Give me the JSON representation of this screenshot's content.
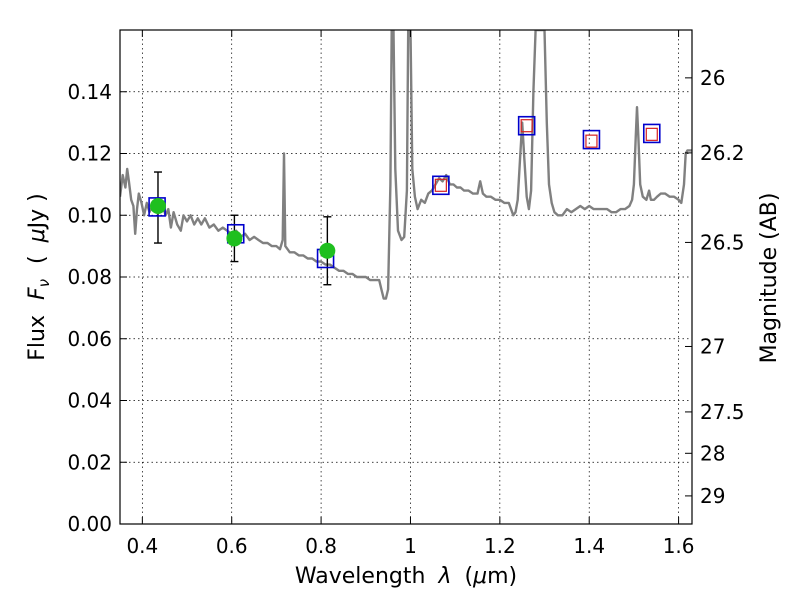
{
  "chart_data": {
    "type": "line",
    "xlabel_parts": [
      "Wavelength",
      "λ",
      "(",
      "μ",
      "m)"
    ],
    "ylabel_parts": [
      "Flux",
      "F",
      "ν",
      "(",
      "μ",
      "Jy )"
    ],
    "y2label": "Magnitude (AB)",
    "xlim": [
      0.35,
      1.63
    ],
    "ylim": [
      0.0,
      0.16
    ],
    "xticks": [
      {
        "value": 0.4,
        "label": "0.4"
      },
      {
        "value": 0.6,
        "label": "0.6"
      },
      {
        "value": 0.8,
        "label": "0.8"
      },
      {
        "value": 1.0,
        "label": "1"
      },
      {
        "value": 1.2,
        "label": "1.2"
      },
      {
        "value": 1.4,
        "label": "1.4"
      },
      {
        "value": 1.6,
        "label": "1.6"
      }
    ],
    "yticks": [
      {
        "value": 0.0,
        "label": "0.00"
      },
      {
        "value": 0.02,
        "label": "0.02"
      },
      {
        "value": 0.04,
        "label": "0.04"
      },
      {
        "value": 0.06,
        "label": "0.06"
      },
      {
        "value": 0.08,
        "label": "0.08"
      },
      {
        "value": 0.1,
        "label": "0.10"
      },
      {
        "value": 0.12,
        "label": "0.12"
      },
      {
        "value": 0.14,
        "label": "0.14"
      }
    ],
    "y2ticks": [
      {
        "label": "26",
        "flux": 0.1445
      },
      {
        "label": "26.2",
        "flux": 0.1202
      },
      {
        "label": "26.5",
        "flux": 0.0912
      },
      {
        "label": "27",
        "flux": 0.0575
      },
      {
        "label": "27.5",
        "flux": 0.0363
      },
      {
        "label": "28",
        "flux": 0.0229
      },
      {
        "label": "29",
        "flux": 0.0091
      }
    ],
    "grid": true,
    "series": [
      {
        "name": "model spectrum",
        "color": "#808080",
        "points": [
          [
            0.35,
            0.106
          ],
          [
            0.356,
            0.113
          ],
          [
            0.362,
            0.109
          ],
          [
            0.366,
            0.115
          ],
          [
            0.37,
            0.111
          ],
          [
            0.375,
            0.105
          ],
          [
            0.38,
            0.103
          ],
          [
            0.384,
            0.094
          ],
          [
            0.388,
            0.102
          ],
          [
            0.392,
            0.107
          ],
          [
            0.398,
            0.104
          ],
          [
            0.404,
            0.1
          ],
          [
            0.41,
            0.104
          ],
          [
            0.416,
            0.101
          ],
          [
            0.422,
            0.103
          ],
          [
            0.43,
            0.102
          ],
          [
            0.438,
            0.105
          ],
          [
            0.446,
            0.103
          ],
          [
            0.452,
            0.1
          ],
          [
            0.458,
            0.102
          ],
          [
            0.464,
            0.096
          ],
          [
            0.47,
            0.101
          ],
          [
            0.478,
            0.097
          ],
          [
            0.486,
            0.095
          ],
          [
            0.492,
            0.1
          ],
          [
            0.5,
            0.098
          ],
          [
            0.508,
            0.1
          ],
          [
            0.516,
            0.097
          ],
          [
            0.524,
            0.099
          ],
          [
            0.532,
            0.097
          ],
          [
            0.54,
            0.099
          ],
          [
            0.55,
            0.096
          ],
          [
            0.56,
            0.097
          ],
          [
            0.57,
            0.095
          ],
          [
            0.58,
            0.096
          ],
          [
            0.59,
            0.095
          ],
          [
            0.6,
            0.094
          ],
          [
            0.61,
            0.095
          ],
          [
            0.62,
            0.093
          ],
          [
            0.63,
            0.094
          ],
          [
            0.64,
            0.092
          ],
          [
            0.65,
            0.093
          ],
          [
            0.66,
            0.092
          ],
          [
            0.67,
            0.091
          ],
          [
            0.68,
            0.091
          ],
          [
            0.69,
            0.09
          ],
          [
            0.7,
            0.09
          ],
          [
            0.708,
            0.089
          ],
          [
            0.714,
            0.092
          ],
          [
            0.717,
            0.12
          ],
          [
            0.72,
            0.09
          ],
          [
            0.73,
            0.088
          ],
          [
            0.74,
            0.088
          ],
          [
            0.75,
            0.087
          ],
          [
            0.76,
            0.087
          ],
          [
            0.77,
            0.086
          ],
          [
            0.78,
            0.086
          ],
          [
            0.79,
            0.085
          ],
          [
            0.8,
            0.085
          ],
          [
            0.81,
            0.084
          ],
          [
            0.82,
            0.084
          ],
          [
            0.83,
            0.083
          ],
          [
            0.84,
            0.082
          ],
          [
            0.85,
            0.082
          ],
          [
            0.86,
            0.081
          ],
          [
            0.87,
            0.081
          ],
          [
            0.88,
            0.08
          ],
          [
            0.89,
            0.08
          ],
          [
            0.9,
            0.08
          ],
          [
            0.91,
            0.079
          ],
          [
            0.92,
            0.079
          ],
          [
            0.93,
            0.079
          ],
          [
            0.935,
            0.076
          ],
          [
            0.94,
            0.073
          ],
          [
            0.945,
            0.073
          ],
          [
            0.95,
            0.076
          ],
          [
            0.955,
            0.11
          ],
          [
            0.958,
            0.16
          ],
          [
            0.962,
            0.16
          ],
          [
            0.966,
            0.115
          ],
          [
            0.972,
            0.095
          ],
          [
            0.98,
            0.092
          ],
          [
            0.986,
            0.093
          ],
          [
            0.992,
            0.108
          ],
          [
            0.995,
            0.16
          ],
          [
            1.0,
            0.16
          ],
          [
            1.004,
            0.115
          ],
          [
            1.01,
            0.106
          ],
          [
            1.016,
            0.102
          ],
          [
            1.024,
            0.105
          ],
          [
            1.032,
            0.104
          ],
          [
            1.04,
            0.107
          ],
          [
            1.048,
            0.108
          ],
          [
            1.056,
            0.11
          ],
          [
            1.064,
            0.112
          ],
          [
            1.072,
            0.111
          ],
          [
            1.08,
            0.113
          ],
          [
            1.088,
            0.11
          ],
          [
            1.096,
            0.11
          ],
          [
            1.104,
            0.109
          ],
          [
            1.112,
            0.109
          ],
          [
            1.12,
            0.108
          ],
          [
            1.13,
            0.108
          ],
          [
            1.14,
            0.107
          ],
          [
            1.15,
            0.107
          ],
          [
            1.156,
            0.111
          ],
          [
            1.162,
            0.107
          ],
          [
            1.17,
            0.106
          ],
          [
            1.18,
            0.106
          ],
          [
            1.19,
            0.105
          ],
          [
            1.2,
            0.105
          ],
          [
            1.21,
            0.104
          ],
          [
            1.22,
            0.104
          ],
          [
            1.23,
            0.1
          ],
          [
            1.235,
            0.101
          ],
          [
            1.24,
            0.105
          ],
          [
            1.245,
            0.118
          ],
          [
            1.25,
            0.13
          ],
          [
            1.255,
            0.118
          ],
          [
            1.26,
            0.106
          ],
          [
            1.265,
            0.102
          ],
          [
            1.27,
            0.108
          ],
          [
            1.275,
            0.14
          ],
          [
            1.28,
            0.16
          ],
          [
            1.3,
            0.16
          ],
          [
            1.305,
            0.13
          ],
          [
            1.31,
            0.11
          ],
          [
            1.316,
            0.104
          ],
          [
            1.322,
            0.101
          ],
          [
            1.33,
            0.1
          ],
          [
            1.34,
            0.1
          ],
          [
            1.35,
            0.102
          ],
          [
            1.36,
            0.101
          ],
          [
            1.37,
            0.102
          ],
          [
            1.38,
            0.103
          ],
          [
            1.39,
            0.102
          ],
          [
            1.4,
            0.103
          ],
          [
            1.41,
            0.102
          ],
          [
            1.42,
            0.102
          ],
          [
            1.43,
            0.102
          ],
          [
            1.44,
            0.102
          ],
          [
            1.45,
            0.101
          ],
          [
            1.46,
            0.101
          ],
          [
            1.47,
            0.102
          ],
          [
            1.48,
            0.102
          ],
          [
            1.49,
            0.103
          ],
          [
            1.496,
            0.105
          ],
          [
            1.5,
            0.11
          ],
          [
            1.504,
            0.125
          ],
          [
            1.507,
            0.135
          ],
          [
            1.51,
            0.125
          ],
          [
            1.514,
            0.11
          ],
          [
            1.52,
            0.106
          ],
          [
            1.528,
            0.105
          ],
          [
            1.534,
            0.108
          ],
          [
            1.538,
            0.105
          ],
          [
            1.545,
            0.105
          ],
          [
            1.552,
            0.106
          ],
          [
            1.56,
            0.107
          ],
          [
            1.57,
            0.107
          ],
          [
            1.58,
            0.106
          ],
          [
            1.59,
            0.106
          ],
          [
            1.6,
            0.105
          ],
          [
            1.606,
            0.104
          ],
          [
            1.612,
            0.11
          ],
          [
            1.616,
            0.12
          ],
          [
            1.62,
            0.121
          ],
          [
            1.63,
            0.121
          ]
        ]
      }
    ],
    "observed_points": [
      {
        "x": 0.435,
        "y": 0.103,
        "yerr_low": 0.091,
        "yerr_high": 0.114
      },
      {
        "x": 0.606,
        "y": 0.0925,
        "yerr_low": 0.085,
        "yerr_high": 0.1
      },
      {
        "x": 0.814,
        "y": 0.0885,
        "yerr_low": 0.0775,
        "yerr_high": 0.0995
      }
    ],
    "observed_color": "#1fbf1f",
    "model_points": [
      {
        "x": 0.433,
        "y": 0.1027
      },
      {
        "x": 0.609,
        "y": 0.094
      },
      {
        "x": 0.81,
        "y": 0.086
      },
      {
        "x": 1.068,
        "y": 0.1097
      },
      {
        "x": 1.26,
        "y": 0.129
      },
      {
        "x": 1.405,
        "y": 0.1245
      },
      {
        "x": 1.54,
        "y": 0.1265
      }
    ],
    "model_inner_points": [
      {
        "x": 1.068,
        "y": 0.1097
      },
      {
        "x": 1.26,
        "y": 0.129
      },
      {
        "x": 1.405,
        "y": 0.124
      },
      {
        "x": 1.54,
        "y": 0.1262
      }
    ],
    "model_color": "#0000cc",
    "model_inner_color": "#d62020"
  }
}
